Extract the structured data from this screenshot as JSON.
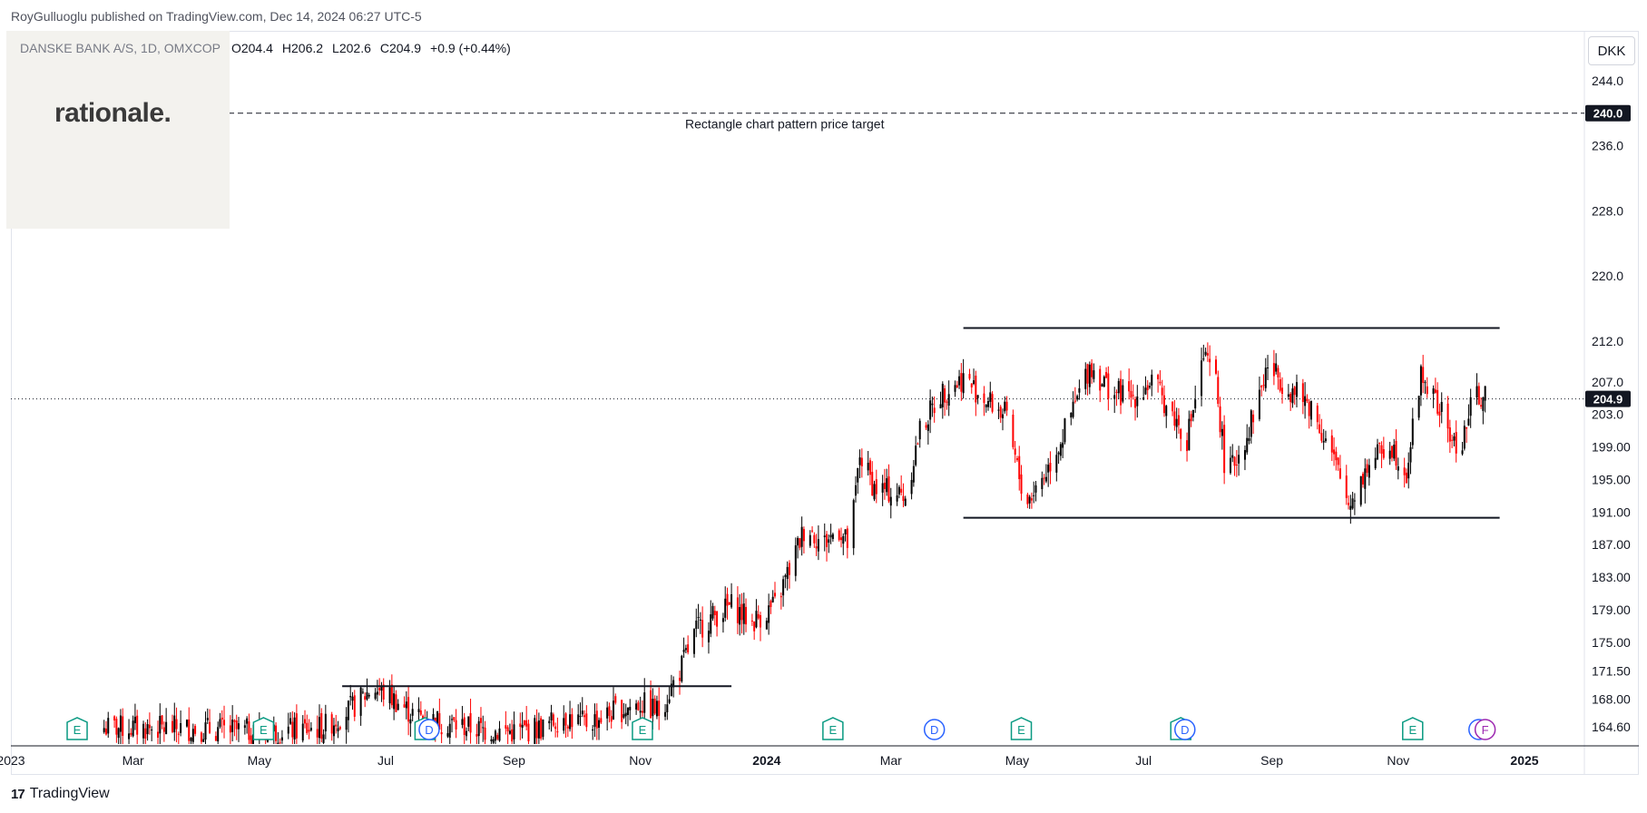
{
  "header": {
    "publisher": "RoyGulluoglu published on TradingView.com, Dec 14, 2024 06:27 UTC-5"
  },
  "legend": {
    "symbol": "DANSKE BANK A/S, 1D, OMXCOP",
    "open": "O204.4",
    "high": "H206.2",
    "low": "L202.6",
    "close": "C204.9",
    "change": "+0.9 (+0.44%)"
  },
  "logo": {
    "text": "rationale."
  },
  "currency_label": "DKK",
  "footer": {
    "brand": "TradingView",
    "mark": "17"
  },
  "colors": {
    "up": "#000000",
    "down": "#ff0000",
    "earnings": "#089981",
    "dividend": "#2962ff",
    "split": "#9c27b0"
  },
  "chart_data": {
    "type": "candlestick",
    "ylim": [
      162.5,
      250.0
    ],
    "y_ticks": [
      "244.0",
      "236.0",
      "228.0",
      "220.0",
      "212.0",
      "207.0",
      "203.0",
      "199.00",
      "195.00",
      "191.00",
      "187.00",
      "183.00",
      "179.00",
      "175.00",
      "171.50",
      "168.00",
      "164.60"
    ],
    "x_ticks": [
      "2023",
      "Mar",
      "May",
      "Jul",
      "Sep",
      "Nov",
      "2024",
      "Mar",
      "May",
      "Jul",
      "Sep",
      "Nov",
      "2025"
    ],
    "x_ticks_bold": [
      "2024"
    ],
    "price_labels": [
      {
        "value": 240.0,
        "text": "240.0"
      },
      {
        "value": 204.9,
        "text": "204.9"
      }
    ],
    "annotations": [
      {
        "text": "Rectangle chart pattern price target",
        "value": 240.0
      }
    ],
    "trend_lines": [
      {
        "from": [
          "2023-06-10",
          169.6
        ],
        "to": [
          "2023-12-15",
          169.6
        ]
      },
      {
        "from": [
          "2024-04-05",
          213.6
        ],
        "to": [
          "2024-12-20",
          213.6
        ]
      },
      {
        "from": [
          "2024-04-05",
          190.3
        ],
        "to": [
          "2024-12-20",
          190.3
        ]
      }
    ],
    "series": [
      {
        "name": "DANSKE BANK A/S",
        "points": [
          [
            "2023-03-01",
            164.5
          ],
          [
            "2023-04-01",
            164.4
          ],
          [
            "2023-05-01",
            164.0
          ],
          [
            "2023-06-01",
            164.5
          ],
          [
            "2023-06-15",
            167.0
          ],
          [
            "2023-06-25",
            169.5
          ],
          [
            "2023-07-05",
            168.0
          ],
          [
            "2023-07-15",
            166.0
          ],
          [
            "2023-08-01",
            165.0
          ],
          [
            "2023-08-15",
            164.3
          ],
          [
            "2023-09-01",
            164.0
          ],
          [
            "2023-09-15",
            164.5
          ],
          [
            "2023-09-25",
            166.0
          ],
          [
            "2023-10-05",
            165.0
          ],
          [
            "2023-10-20",
            166.5
          ],
          [
            "2023-11-01",
            167.5
          ],
          [
            "2023-11-10",
            166.5
          ],
          [
            "2023-11-20",
            171.5
          ],
          [
            "2023-11-28",
            176.5
          ],
          [
            "2023-12-05",
            178.0
          ],
          [
            "2023-12-15",
            179.5
          ],
          [
            "2023-12-25",
            177.5
          ],
          [
            "2024-01-05",
            179.5
          ],
          [
            "2024-01-12",
            184.0
          ],
          [
            "2024-01-20",
            189.5
          ],
          [
            "2024-01-28",
            187.0
          ],
          [
            "2024-02-05",
            189.0
          ],
          [
            "2024-02-10",
            186.5
          ],
          [
            "2024-02-15",
            198.0
          ],
          [
            "2024-02-22",
            194.0
          ],
          [
            "2024-03-01",
            193.5
          ],
          [
            "2024-03-08",
            193.0
          ],
          [
            "2024-03-15",
            201.0
          ],
          [
            "2024-03-25",
            205.5
          ],
          [
            "2024-04-05",
            207.5
          ],
          [
            "2024-04-15",
            205.0
          ],
          [
            "2024-04-25",
            203.0
          ],
          [
            "2024-05-05",
            192.0
          ],
          [
            "2024-05-15",
            196.0
          ],
          [
            "2024-05-25",
            201.5
          ],
          [
            "2024-06-05",
            209.0
          ],
          [
            "2024-06-15",
            206.0
          ],
          [
            "2024-06-25",
            205.0
          ],
          [
            "2024-07-05",
            207.0
          ],
          [
            "2024-07-15",
            203.0
          ],
          [
            "2024-07-22",
            200.0
          ],
          [
            "2024-07-30",
            210.0
          ],
          [
            "2024-08-05",
            207.0
          ],
          [
            "2024-08-10",
            195.0
          ],
          [
            "2024-08-20",
            200.5
          ],
          [
            "2024-08-30",
            209.0
          ],
          [
            "2024-09-10",
            206.0
          ],
          [
            "2024-09-20",
            204.0
          ],
          [
            "2024-09-30",
            198.0
          ],
          [
            "2024-10-08",
            192.0
          ],
          [
            "2024-10-18",
            197.0
          ],
          [
            "2024-10-28",
            199.5
          ],
          [
            "2024-11-05",
            196.0
          ],
          [
            "2024-11-12",
            208.0
          ],
          [
            "2024-11-22",
            203.0
          ],
          [
            "2024-11-30",
            198.0
          ],
          [
            "2024-12-08",
            205.5
          ],
          [
            "2024-12-13",
            204.9
          ]
        ]
      }
    ],
    "event_markers": [
      {
        "type": "earnings",
        "label": "E",
        "date": "2023-02-02"
      },
      {
        "type": "earnings",
        "label": "E",
        "date": "2023-05-03"
      },
      {
        "type": "earnings",
        "label": "E",
        "date": "2023-07-20"
      },
      {
        "type": "dividend",
        "label": "D",
        "date": "2023-07-22"
      },
      {
        "type": "earnings",
        "label": "E",
        "date": "2023-11-02"
      },
      {
        "type": "earnings",
        "label": "E",
        "date": "2024-02-02"
      },
      {
        "type": "dividend",
        "label": "D",
        "date": "2024-03-22"
      },
      {
        "type": "earnings",
        "label": "E",
        "date": "2024-05-03"
      },
      {
        "type": "earnings",
        "label": "E",
        "date": "2024-07-19"
      },
      {
        "type": "dividend",
        "label": "D",
        "date": "2024-07-21"
      },
      {
        "type": "earnings",
        "label": "E",
        "date": "2024-11-08"
      },
      {
        "type": "dividend",
        "label": "D",
        "date": "2024-12-10"
      },
      {
        "type": "split",
        "label": "F",
        "date": "2024-12-13"
      }
    ]
  }
}
